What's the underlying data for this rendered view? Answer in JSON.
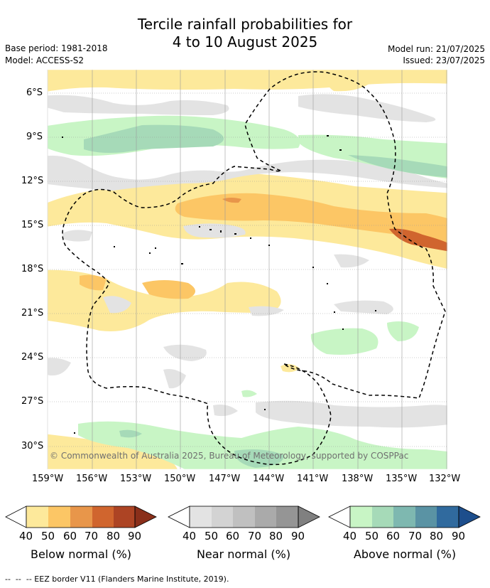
{
  "header": {
    "title_line1": "Tercile rainfall probabilities for",
    "title_line2": "4 to 10 August 2025",
    "base_period": "Base period: 1981-2018",
    "model": "Model: ACCESS-S2",
    "model_run": "Model run: 21/07/2025",
    "issued": "Issued: 23/07/2025"
  },
  "map": {
    "lat_labels": [
      "6°S",
      "9°S",
      "12°S",
      "15°S",
      "18°S",
      "21°S",
      "24°S",
      "27°S",
      "30°S"
    ],
    "lon_labels": [
      "159°W",
      "156°W",
      "153°W",
      "150°W",
      "147°W",
      "144°W",
      "141°W",
      "138°W",
      "135°W",
      "132°W"
    ],
    "copyright": "© Commonwealth of Australia 2025, Bureau of Meteorology, supported by COSPPac"
  },
  "colors": {
    "below": [
      "#fde99b",
      "#fcc665",
      "#e8964a",
      "#d0652e",
      "#ad4424",
      "#8a2f1a"
    ],
    "near": [
      "#e3e3e3",
      "#d3d3d3",
      "#c0c0c0",
      "#aaaaaa",
      "#959595",
      "#808080"
    ],
    "above": [
      "#c8f5c5",
      "#a6dab8",
      "#7eb8b0",
      "#5a93a4",
      "#306a9e",
      "#1d4e8c"
    ]
  },
  "legends": [
    {
      "label": "Below normal (%)",
      "ticks": [
        "40",
        "50",
        "60",
        "70",
        "80",
        "90"
      ]
    },
    {
      "label": "Near normal (%)",
      "ticks": [
        "40",
        "50",
        "60",
        "70",
        "80",
        "90"
      ]
    },
    {
      "label": "Above normal (%)",
      "ticks": [
        "40",
        "50",
        "60",
        "70",
        "80",
        "90"
      ]
    }
  ],
  "footer": {
    "eez_note": "--  --  -- EEZ border V11 (Flanders Marine Institute, 2019)."
  }
}
